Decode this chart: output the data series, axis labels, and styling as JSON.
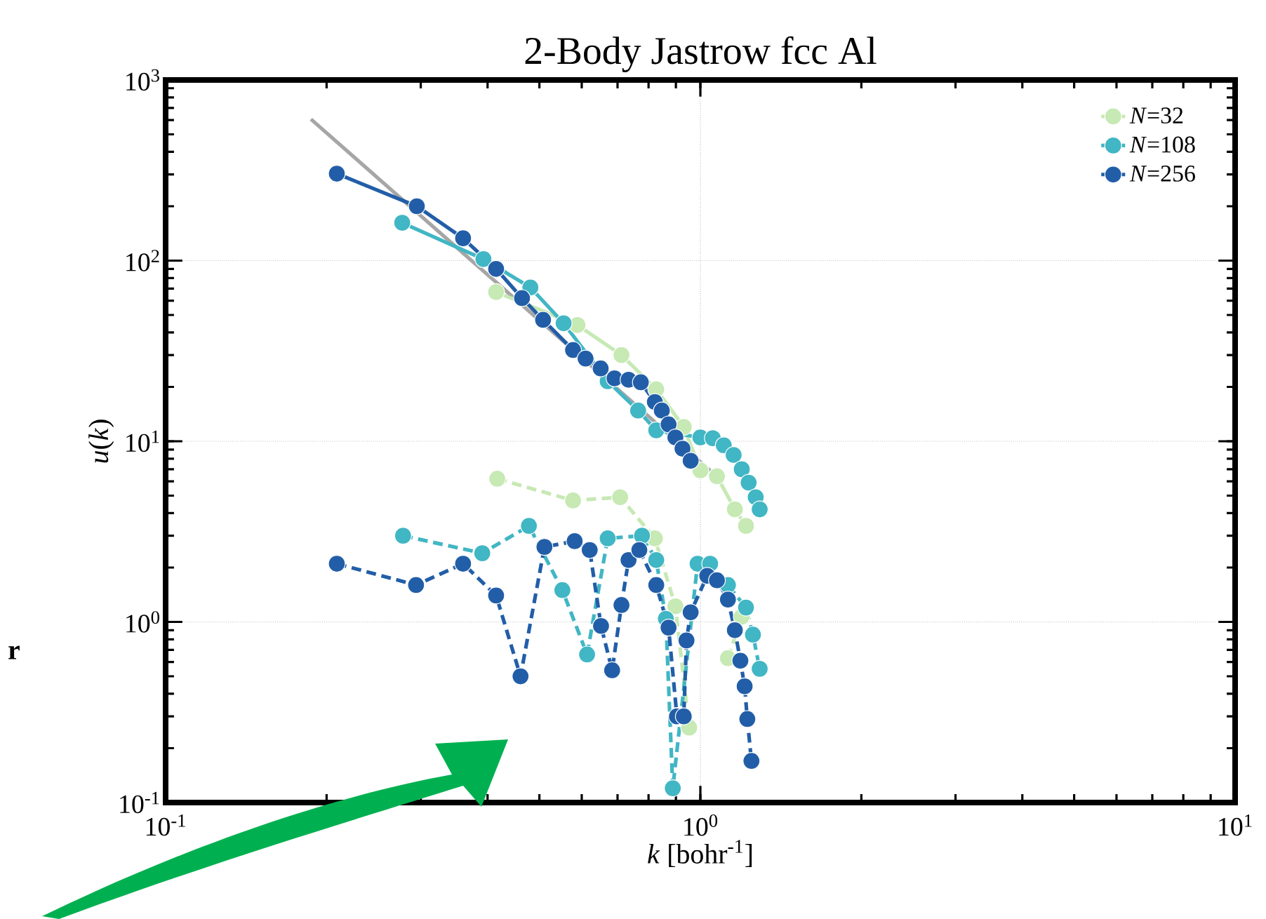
{
  "chart_data": {
    "type": "line",
    "title": "2-Body Jastrow fcc Al",
    "xlabel": "*k* [bohr$^{-1}$]",
    "ylabel": "*u*(*k*)",
    "log": "xy",
    "xlim": [
      0.1,
      10
    ],
    "ylim": [
      0.1,
      1000
    ],
    "xticks": [
      {
        "value": 0.1,
        "label": "10$^{-1}$"
      },
      {
        "value": 1,
        "label": "10$^{0}$"
      },
      {
        "value": 10,
        "label": "10$^{1}$"
      }
    ],
    "yticks": [
      {
        "value": 0.1,
        "label": "10$^{-1}$"
      },
      {
        "value": 1,
        "label": "10$^{0}$"
      },
      {
        "value": 10,
        "label": "10$^{1}$"
      },
      {
        "value": 100,
        "label": "10$^{2}$"
      },
      {
        "value": 1000,
        "label": "10$^{3}$"
      }
    ],
    "grid": true,
    "legend": "top right",
    "marker": "circle",
    "line_style": "solid",
    "annotations": [
      "r"
    ],
    "series": [
      {
        "color": "#a6a6a6",
        "marker": "none",
        "x": [
          0.187,
          1.06
        ],
        "values": [
          607,
          6.6
        ]
      },
      {
        "name": "*N*=32",
        "color": "#c7e9b4",
        "x": [
          0.415,
          0.589,
          0.712,
          0.827,
          0.931,
          1.0,
          1.074,
          1.16,
          1.217
        ],
        "values": [
          67,
          44,
          30,
          19.4,
          12.0,
          6.9,
          6.4,
          4.2,
          3.4
        ]
      },
      {
        "name": "*N*=108",
        "color": "#41b6c4",
        "x": [
          0.277,
          0.393,
          0.481,
          0.555,
          0.671,
          0.765,
          0.827,
          1.0,
          1.055,
          1.106,
          1.154,
          1.195,
          1.231,
          1.269,
          1.291
        ],
        "values": [
          162,
          102,
          71,
          45,
          21.5,
          14.8,
          11.5,
          10.5,
          10.4,
          9.5,
          8.4,
          7.0,
          5.9,
          4.9,
          4.2
        ]
      },
      {
        "name": "*N*=256",
        "color": "#225ea8",
        "x": [
          0.209,
          0.295,
          0.36,
          0.415,
          0.464,
          0.508,
          0.578,
          0.61,
          0.651,
          0.691,
          0.734,
          0.774,
          0.822,
          0.847,
          0.872,
          0.898,
          0.926,
          0.959
        ],
        "values": [
          303,
          200,
          133,
          90,
          62,
          47,
          32,
          28.7,
          25.3,
          22.3,
          21.9,
          21.2,
          16.5,
          14.8,
          12.4,
          10.5,
          9.1,
          7.8
        ]
      },
      {
        "color": "#c7e9b4",
        "line_style": "dashed",
        "x": [
          0.417,
          0.578,
          0.708,
          0.822,
          0.898,
          0.953,
          0.99,
          1.074,
          1.126,
          1.195
        ],
        "values": [
          6.2,
          4.7,
          4.9,
          2.9,
          1.22,
          0.26,
          null,
          null,
          0.63,
          1.07
        ]
      },
      {
        "color": "#41b6c4",
        "line_style": "dashed",
        "x": [
          0.278,
          0.391,
          0.478,
          0.552,
          0.614,
          0.671,
          0.778,
          0.827,
          0.862,
          0.888,
          0.988,
          1.043,
          1.126,
          1.217,
          1.254,
          1.291
        ],
        "values": [
          3.0,
          2.4,
          3.4,
          1.5,
          0.66,
          2.9,
          3.0,
          2.2,
          1.04,
          0.12,
          2.1,
          2.1,
          1.6,
          1.2,
          0.85,
          0.55
        ]
      },
      {
        "color": "#225ea8",
        "line_style": "dashed",
        "x": [
          0.209,
          0.294,
          0.36,
          0.415,
          0.461,
          0.511,
          0.582,
          0.621,
          0.652,
          0.684,
          0.712,
          0.734,
          0.769,
          0.827,
          0.872,
          0.904,
          0.931,
          0.942,
          0.959,
          1.03,
          1.074,
          1.126,
          1.16,
          1.188,
          1.21,
          1.224,
          1.246
        ],
        "values": [
          2.1,
          1.6,
          2.1,
          1.4,
          0.5,
          2.6,
          2.8,
          2.5,
          0.95,
          0.54,
          1.24,
          2.2,
          2.5,
          1.6,
          0.93,
          0.3,
          0.3,
          0.79,
          1.13,
          1.8,
          1.7,
          1.33,
          0.9,
          0.61,
          0.44,
          0.29,
          0.17
        ]
      }
    ]
  }
}
